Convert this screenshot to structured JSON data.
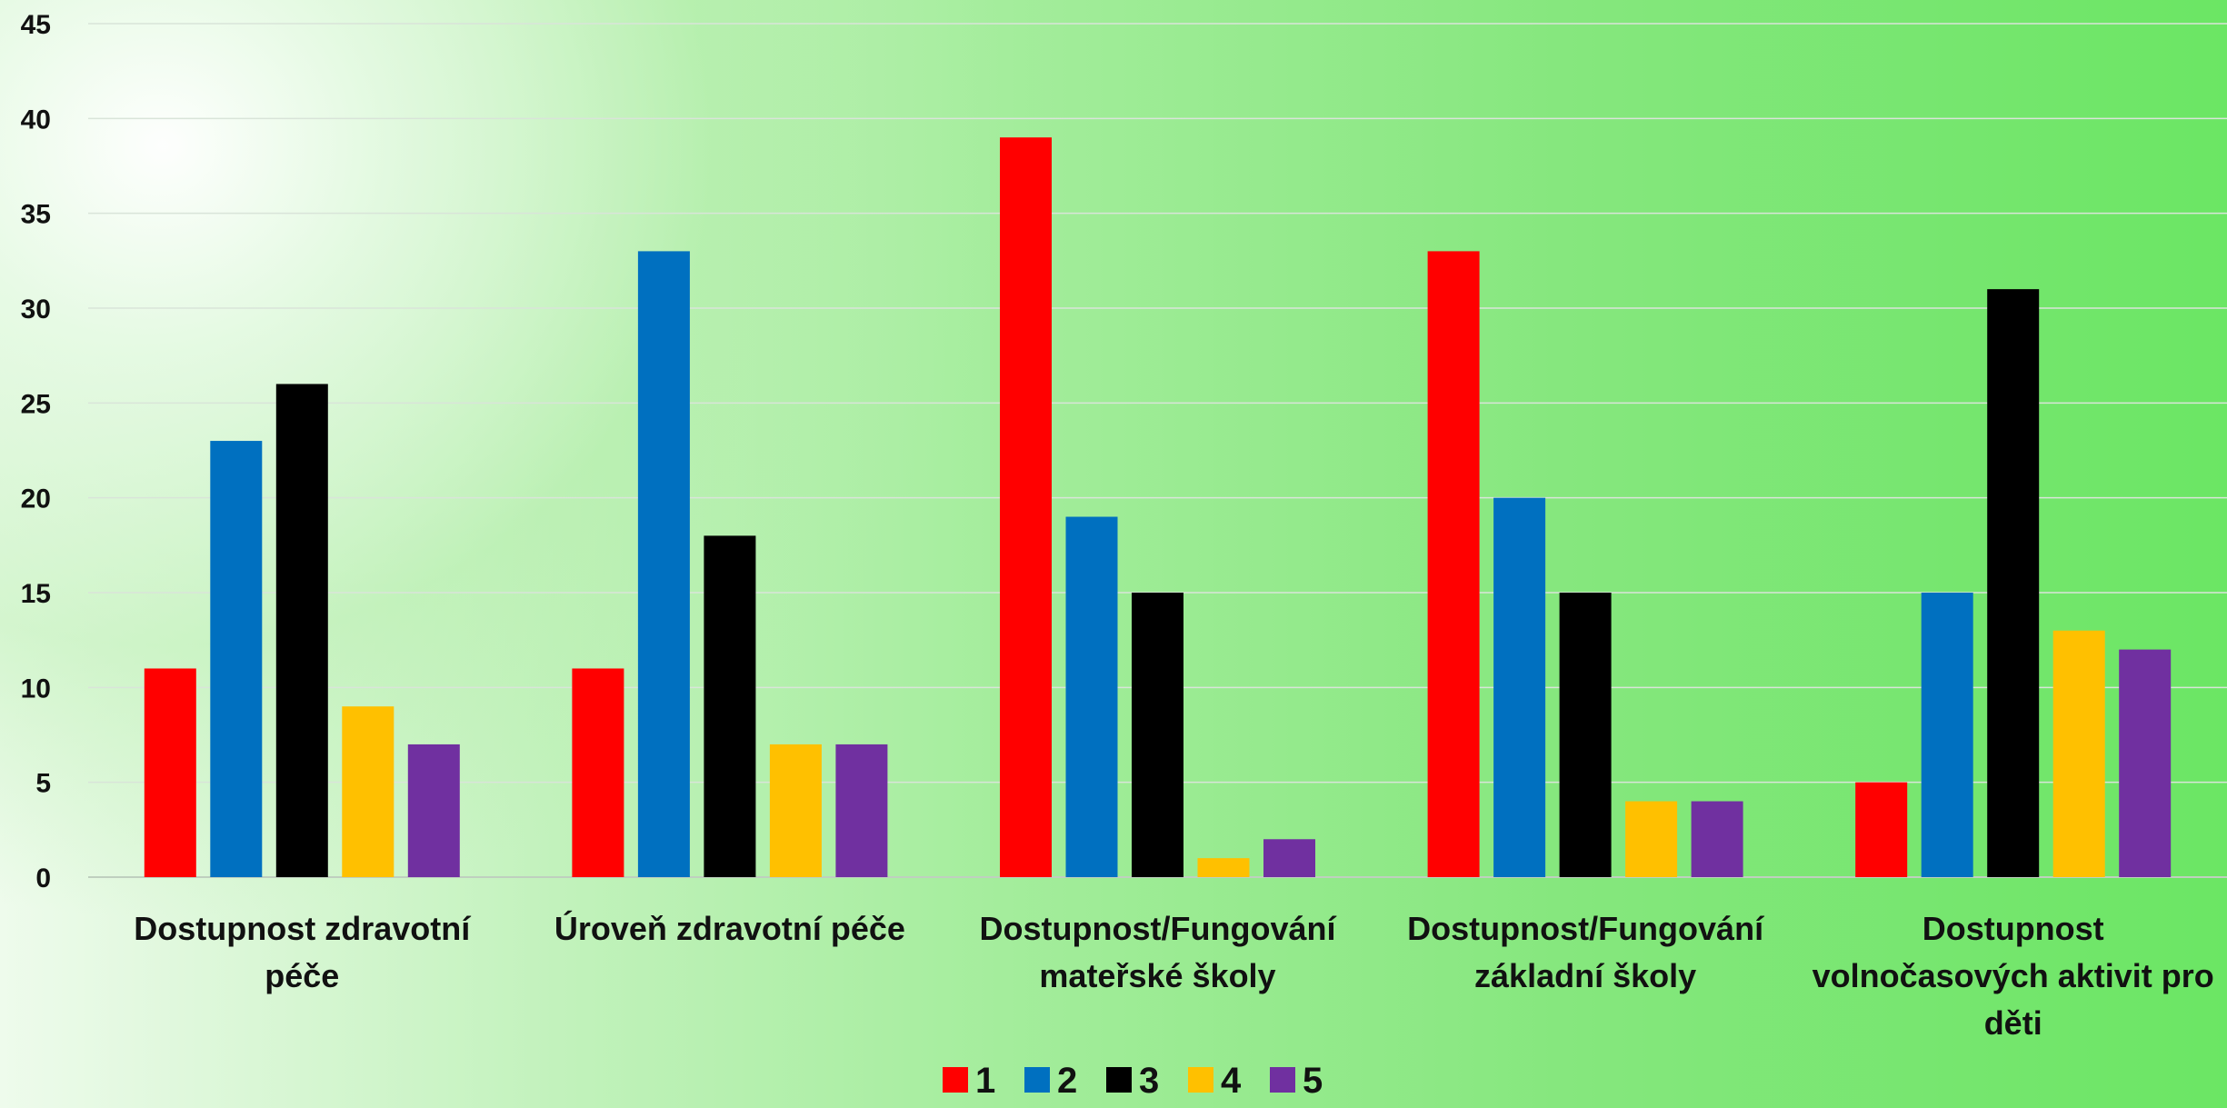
{
  "chart_data": {
    "type": "bar",
    "title": "",
    "xlabel": "",
    "ylabel": "",
    "ylim": [
      0,
      45
    ],
    "yticks": [
      0,
      5,
      10,
      15,
      20,
      25,
      30,
      35,
      40,
      45
    ],
    "grid": true,
    "legend_position": "bottom",
    "categories": [
      [
        "Dostupnost zdravotní",
        "péče"
      ],
      [
        "Úroveň zdravotní péče"
      ],
      [
        "Dostupnost/Fungování",
        "mateřské školy"
      ],
      [
        "Dostupnost/Fungování",
        "základní školy"
      ],
      [
        "Dostupnost",
        "volnočasových aktivit pro",
        "děti"
      ]
    ],
    "series": [
      {
        "name": "1",
        "color": "#ff0000",
        "values": [
          11,
          11,
          39,
          33,
          5
        ]
      },
      {
        "name": "2",
        "color": "#0070c0",
        "values": [
          23,
          33,
          19,
          20,
          15
        ]
      },
      {
        "name": "3",
        "color": "#000000",
        "values": [
          26,
          18,
          15,
          15,
          31
        ]
      },
      {
        "name": "4",
        "color": "#ffc000",
        "values": [
          9,
          7,
          1,
          4,
          13
        ]
      },
      {
        "name": "5",
        "color": "#7030a0",
        "values": [
          7,
          7,
          2,
          4,
          12
        ]
      }
    ]
  }
}
